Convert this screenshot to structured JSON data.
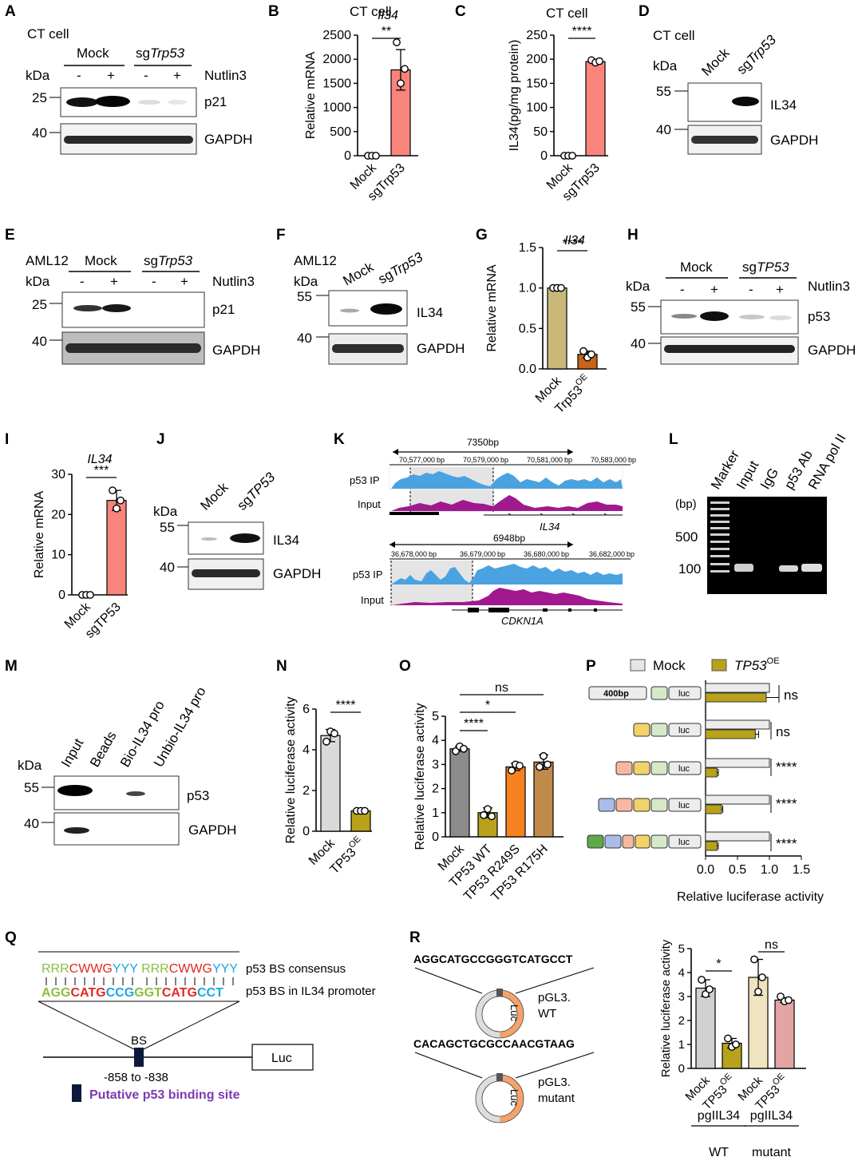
{
  "panel_letters": [
    "A",
    "B",
    "C",
    "D",
    "E",
    "F",
    "G",
    "H",
    "I",
    "J",
    "K",
    "L",
    "M",
    "N",
    "O",
    "P",
    "Q",
    "R"
  ],
  "A": {
    "cell": "CT cell",
    "group_mock": "Mock",
    "group_sg_prefix": "sg",
    "group_sg_gene": "Trp53",
    "kda": "kDa",
    "lane_signs": [
      "-",
      "+",
      "-",
      "+"
    ],
    "treatment": "Nutlin3",
    "bands": [
      {
        "marker": "25",
        "label": "p21"
      },
      {
        "marker": "40",
        "label": "GAPDH"
      }
    ]
  },
  "E": {
    "cell": "AML12",
    "group_mock": "Mock",
    "group_sg_prefix": "sg",
    "group_sg_gene": "Trp53",
    "kda": "kDa",
    "lane_signs": [
      "-",
      "+",
      "-",
      "+"
    ],
    "treatment": "Nutlin3",
    "bands": [
      {
        "marker": "25",
        "label": "p21"
      },
      {
        "marker": "40",
        "label": "GAPDH"
      }
    ]
  },
  "H": {
    "group_mock": "Mock",
    "group_sg_prefix": "sg",
    "group_sg_gene": "TP53",
    "kda": "kDa",
    "lane_signs": [
      "-",
      "+",
      "-",
      "+"
    ],
    "treatment": "Nutlin3",
    "bands": [
      {
        "marker": "55",
        "label": "p53"
      },
      {
        "marker": "40",
        "label": "GAPDH"
      }
    ]
  },
  "D": {
    "cell": "CT cell",
    "kda": "kDa",
    "lane_mock": "Mock",
    "lane_sg_prefix": "sg",
    "lane_sg_gene": "Trp53",
    "bands": [
      {
        "marker": "55",
        "label": "IL34"
      },
      {
        "marker": "40",
        "label": "GAPDH"
      }
    ]
  },
  "F": {
    "cell": "AML12",
    "kda": "kDa",
    "lane_mock": "Mock",
    "lane_sg_prefix": "sg",
    "lane_sg_gene": "Trp53",
    "bands": [
      {
        "marker": "55",
        "label": "IL34"
      },
      {
        "marker": "40",
        "label": "GAPDH"
      }
    ]
  },
  "J": {
    "kda": "kDa",
    "lane_mock": "Mock",
    "lane_sg_prefix": "sg",
    "lane_sg_gene": "TP53",
    "bands": [
      {
        "marker": "55",
        "label": "IL34"
      },
      {
        "marker": "40",
        "label": "GAPDH"
      }
    ]
  },
  "K": {
    "top": {
      "span": "7350bp",
      "ticks": [
        "70,577,000",
        "70,579,000",
        "70,581,000",
        "70,583,000"
      ],
      "unit": "bp",
      "tracks": [
        "p53 IP",
        "Input"
      ],
      "gene": "IL34"
    },
    "bottom": {
      "span": "6948bp",
      "ticks": [
        "36,678,000",
        "36,679,000",
        "36,680,000",
        "36,682,000"
      ],
      "unit": "bp",
      "tracks": [
        "p53 IP",
        "Input"
      ],
      "gene": "CDKN1A"
    }
  },
  "L": {
    "lanes": [
      "Marker",
      "Input",
      "IgG",
      "p53 Ab",
      "RNA pol II"
    ],
    "unit": "(bp)",
    "markers": [
      "500",
      "100"
    ]
  },
  "M": {
    "kda": "kDa",
    "lanes": [
      "Input",
      "Beads",
      "Bio-IL34 pro",
      "Unbio-IL34 pro"
    ],
    "bands": [
      {
        "marker": "55",
        "label": "p53"
      },
      {
        "marker": "40",
        "label": "GAPDH"
      }
    ]
  },
  "P": {
    "legend": [
      {
        "name": "Mock",
        "color": "#e6e6e6"
      },
      {
        "name": "TP53",
        "sup": "OE",
        "color": "#b8a21b"
      }
    ],
    "first_box": "400bp",
    "luc": "luc",
    "sig": [
      "ns",
      "ns",
      "****",
      "****",
      "****"
    ]
  },
  "Q": {
    "consensus": [
      {
        "t": "RRR",
        "c": "#8bbf3f"
      },
      {
        "t": "CWWG",
        "c": "#e3271f"
      },
      {
        "t": "YYY",
        "c": "#1aa7e0"
      },
      {
        "t": " ",
        "c": "#000"
      },
      {
        "t": "RRR",
        "c": "#8bbf3f"
      },
      {
        "t": "CWWG",
        "c": "#e3271f"
      },
      {
        "t": "YYY",
        "c": "#1aa7e0"
      }
    ],
    "promoter_seq": [
      {
        "t": "AGG",
        "c": "#8bbf3f"
      },
      {
        "t": "CATG",
        "c": "#e3271f"
      },
      {
        "t": "CCG",
        "c": "#1aa7e0"
      },
      {
        "t": "GGT",
        "c": "#8bbf3f"
      },
      {
        "t": "CATG",
        "c": "#e3271f"
      },
      {
        "t": "CCT",
        "c": "#1aa7e0"
      }
    ],
    "consensus_label": "p53 BS consensus",
    "promoter_label": "p53 BS in IL34 promoter",
    "bs": "BS",
    "range": "-858 to -838",
    "luc": "Luc",
    "legend": "Putative p53 binding site"
  },
  "R": {
    "wt_seq": "AGGCATGCCGGGTCATGCCT",
    "mut_seq": "CACAGCTGCGCCAACGTAAG",
    "luc": "Luc",
    "wt_label": [
      "pGL3.",
      "WT"
    ],
    "mut_label": [
      "pGL3.",
      "mutant"
    ]
  },
  "chart_data": [
    {
      "panel": "B",
      "type": "bar",
      "super_title": "CT cell",
      "title": "Il34",
      "ylabel": "Relative mRNA",
      "categories": [
        "Mock",
        "sgTrp53"
      ],
      "values": [
        0,
        1780
      ],
      "points": [
        [
          0,
          0,
          0
        ],
        [
          2350,
          1500,
          1800
        ]
      ],
      "errors": [
        0,
        420
      ],
      "ylim": [
        0,
        2500
      ],
      "yticks": [
        0,
        500,
        1000,
        1500,
        2000,
        2500
      ],
      "colors": [
        "#ffffff",
        "#f8847c"
      ],
      "sig": [
        {
          "text": "**",
          "from": 0,
          "to": 1
        }
      ]
    },
    {
      "panel": "C",
      "type": "bar",
      "super_title": "CT cell",
      "ylabel": "IL34(pg/mg protein)",
      "categories": [
        "Mock",
        "sgTrp53"
      ],
      "values": [
        0,
        195
      ],
      "points": [
        [
          0,
          0,
          0
        ],
        [
          198,
          193,
          196
        ]
      ],
      "errors": [
        0,
        3
      ],
      "ylim": [
        0,
        250
      ],
      "yticks": [
        0,
        50,
        100,
        150,
        200,
        250
      ],
      "colors": [
        "#ffffff",
        "#f8847c"
      ],
      "sig": [
        {
          "text": "****",
          "from": 0,
          "to": 1
        }
      ]
    },
    {
      "panel": "G",
      "type": "bar",
      "title": "Il34",
      "ylabel": "Relative mRNA",
      "categories": [
        "Mock",
        "Trp53"
      ],
      "category_sup": [
        "",
        "OE"
      ],
      "values": [
        1.0,
        0.18
      ],
      "points": [
        [
          1.0,
          1.0,
          1.0
        ],
        [
          0.22,
          0.14,
          0.18
        ]
      ],
      "errors": [
        0,
        0.04
      ],
      "ylim": [
        0,
        1.5
      ],
      "yticks": [
        0.0,
        0.5,
        1.0,
        1.5
      ],
      "tick_decimals": 1,
      "colors": [
        "#c9b878",
        "#c7641a"
      ],
      "sig": [
        {
          "text": "****",
          "from": 0,
          "to": 1
        }
      ]
    },
    {
      "panel": "I",
      "type": "bar",
      "title": "IL34",
      "ylabel": "Relative mRNA",
      "categories": [
        "Mock",
        "sgTP53"
      ],
      "values": [
        0,
        23.5
      ],
      "points": [
        [
          0,
          0,
          0
        ],
        [
          26,
          21.5,
          23.5
        ]
      ],
      "errors": [
        0,
        2.5
      ],
      "ylim": [
        0,
        30
      ],
      "yticks": [
        0,
        10,
        20,
        30
      ],
      "colors": [
        "#ffffff",
        "#f8847c"
      ],
      "sig": [
        {
          "text": "***",
          "from": 0,
          "to": 1
        }
      ]
    },
    {
      "panel": "N",
      "type": "bar",
      "ylabel": "Relative luciferase activity",
      "categories": [
        "Mock",
        "TP53"
      ],
      "category_sup": [
        "",
        "OE"
      ],
      "values": [
        4.7,
        1.0
      ],
      "points": [
        [
          4.4,
          4.9,
          4.8
        ],
        [
          1.0,
          1.0,
          1.0
        ]
      ],
      "errors": [
        0.3,
        0
      ],
      "ylim": [
        0,
        6
      ],
      "yticks": [
        0,
        2,
        4,
        6
      ],
      "colors": [
        "#d9d9d9",
        "#b8a21b"
      ],
      "sig": [
        {
          "text": "****",
          "from": 0,
          "to": 1
        }
      ]
    },
    {
      "panel": "O",
      "type": "bar",
      "ylabel": "Relative luciferase activity",
      "categories": [
        "Mock",
        "TP53 WT",
        "TP53 R249S",
        "TP53 R175H"
      ],
      "values": [
        3.65,
        1.0,
        2.9,
        3.1
      ],
      "points": [
        [
          3.55,
          3.75,
          3.65
        ],
        [
          0.9,
          1.15,
          0.85
        ],
        [
          2.75,
          3.0,
          2.95
        ],
        [
          2.9,
          3.35,
          3.0
        ]
      ],
      "errors": [
        0.1,
        0.2,
        0.15,
        0.3
      ],
      "ylim": [
        0,
        5
      ],
      "yticks": [
        0,
        1,
        2,
        3,
        4,
        5
      ],
      "colors": [
        "#8c8c8c",
        "#b8a21b",
        "#f5811f",
        "#c08a4a"
      ],
      "sig": [
        {
          "text": "****",
          "from": 0,
          "to": 1
        },
        {
          "text": "*",
          "from": 0,
          "to": 2
        },
        {
          "text": "ns",
          "from": 0,
          "to": 3
        }
      ]
    },
    {
      "panel": "P",
      "type": "bar",
      "orientation": "horizontal",
      "xlabel": "Relative luciferase activity",
      "constructs": 5,
      "series": [
        {
          "name": "Mock",
          "values": [
            1,
            1,
            1,
            1,
            1
          ]
        },
        {
          "name": "TP53OE",
          "values": [
            0.95,
            0.78,
            0.18,
            0.25,
            0.18
          ]
        }
      ],
      "errors": [
        0.2,
        0.05,
        0.02,
        0.02,
        0.02
      ],
      "xlim": [
        0,
        1.5
      ],
      "xticks": [
        0.0,
        0.5,
        1.0,
        1.5
      ],
      "tick_decimals": 1
    },
    {
      "panel": "R",
      "type": "bar",
      "ylabel": "Relative luciferase activity",
      "categories": [
        "Mock",
        "TP53",
        "Mock",
        "TP53"
      ],
      "category_sup": [
        "",
        "OE",
        "",
        "OE"
      ],
      "groups": [
        {
          "label": [
            "pgIIL34",
            "WT"
          ],
          "from": 0,
          "to": 1
        },
        {
          "label": [
            "pgIIL34",
            "mutant"
          ],
          "from": 2,
          "to": 3
        }
      ],
      "values": [
        3.35,
        1.05,
        3.8,
        2.85
      ],
      "points": [
        [
          3.7,
          3.1,
          3.3
        ],
        [
          1.25,
          0.9,
          1.0
        ],
        [
          4.55,
          3.2,
          3.8
        ],
        [
          3.0,
          2.8,
          2.85
        ]
      ],
      "errors": [
        0.35,
        0.2,
        0.75,
        0.1
      ],
      "ylim": [
        0,
        5
      ],
      "yticks": [
        0,
        1,
        2,
        3,
        4,
        5
      ],
      "colors": [
        "#d0d0d0",
        "#b8a21b",
        "#efe3c0",
        "#e3a4a4"
      ],
      "sig": [
        {
          "text": "*",
          "from": 0,
          "to": 1
        },
        {
          "text": "ns",
          "from": 2,
          "to": 3
        }
      ]
    }
  ]
}
